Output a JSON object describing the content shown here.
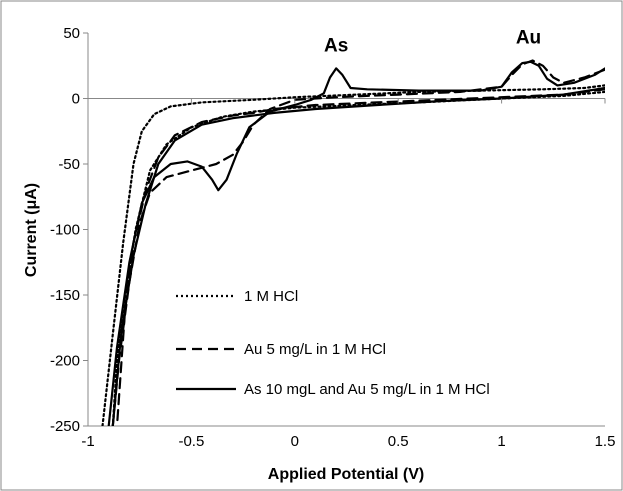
{
  "chart_data": {
    "type": "line",
    "title": "",
    "xlabel": "Applied Potential (V)",
    "ylabel": "Current (μA)",
    "xlim": [
      -1,
      1.5
    ],
    "ylim": [
      -250,
      50
    ],
    "x_ticks": [
      "-1",
      "-0.5",
      "0",
      "0.5",
      "1",
      "1.5"
    ],
    "y_ticks": [
      "50",
      "0",
      "-50",
      "-100",
      "-150",
      "-200",
      "-250"
    ],
    "grid": false,
    "legend_position": "bottom-center inside plot",
    "annotations": [
      {
        "text": "As",
        "x": 0.2,
        "y": 36
      },
      {
        "text": "Au",
        "x": 1.13,
        "y": 42
      }
    ],
    "series": [
      {
        "name": "1 M HCl",
        "style": "dotted",
        "color": "#000000",
        "segments": [
          [
            [
              -0.93,
              -250
            ],
            [
              -0.88,
              -180
            ],
            [
              -0.83,
              -110
            ],
            [
              -0.78,
              -50
            ],
            [
              -0.74,
              -25
            ],
            [
              -0.68,
              -12
            ],
            [
              -0.6,
              -6
            ],
            [
              -0.45,
              -3
            ],
            [
              -0.2,
              -1
            ],
            [
              0.0,
              1
            ],
            [
              0.3,
              3
            ],
            [
              0.6,
              5
            ],
            [
              0.9,
              6
            ],
            [
              1.2,
              7
            ],
            [
              1.4,
              8
            ],
            [
              1.5,
              10
            ]
          ],
          [
            [
              1.5,
              5
            ],
            [
              1.3,
              2
            ],
            [
              1.0,
              0
            ],
            [
              0.6,
              -3
            ],
            [
              0.3,
              -5
            ],
            [
              0.0,
              -7
            ],
            [
              -0.2,
              -10
            ],
            [
              -0.35,
              -14
            ],
            [
              -0.5,
              -22
            ],
            [
              -0.62,
              -35
            ],
            [
              -0.7,
              -55
            ],
            [
              -0.77,
              -100
            ],
            [
              -0.82,
              -150
            ],
            [
              -0.86,
              -200
            ],
            [
              -0.88,
              -250
            ]
          ]
        ]
      },
      {
        "name": "Au 5 mg/L in 1 M HCl",
        "style": "dashed",
        "color": "#000000",
        "segments": [
          [
            [
              -0.88,
              -250
            ],
            [
              -0.85,
              -200
            ],
            [
              -0.8,
              -140
            ],
            [
              -0.75,
              -95
            ],
            [
              -0.7,
              -72
            ],
            [
              -0.62,
              -60
            ],
            [
              -0.5,
              -55
            ],
            [
              -0.38,
              -50
            ],
            [
              -0.3,
              -43
            ],
            [
              -0.25,
              -33
            ],
            [
              -0.2,
              -20
            ],
            [
              -0.12,
              -8
            ],
            [
              0.0,
              -1
            ],
            [
              0.2,
              1
            ],
            [
              0.5,
              3
            ],
            [
              0.8,
              5
            ],
            [
              1.0,
              9
            ],
            [
              1.05,
              18
            ],
            [
              1.1,
              26
            ],
            [
              1.15,
              29
            ],
            [
              1.2,
              25
            ],
            [
              1.25,
              16
            ],
            [
              1.3,
              12
            ],
            [
              1.4,
              16
            ],
            [
              1.5,
              22
            ]
          ],
          [
            [
              1.5,
              7
            ],
            [
              1.3,
              3
            ],
            [
              1.0,
              1
            ],
            [
              0.7,
              -1
            ],
            [
              0.4,
              -3
            ],
            [
              0.1,
              -5
            ],
            [
              -0.1,
              -8
            ],
            [
              -0.2,
              -11
            ],
            [
              -0.3,
              -13
            ],
            [
              -0.45,
              -18
            ],
            [
              -0.58,
              -28
            ],
            [
              -0.66,
              -45
            ],
            [
              -0.72,
              -70
            ],
            [
              -0.78,
              -110
            ],
            [
              -0.82,
              -160
            ],
            [
              -0.86,
              -250
            ]
          ]
        ]
      },
      {
        "name": "As 10 mgL and Au 5 mg/L in 1 M HCl",
        "style": "solid",
        "color": "#000000",
        "segments": [
          [
            [
              -0.9,
              -250
            ],
            [
              -0.86,
              -190
            ],
            [
              -0.8,
              -125
            ],
            [
              -0.74,
              -80
            ],
            [
              -0.68,
              -60
            ],
            [
              -0.6,
              -50
            ],
            [
              -0.52,
              -48
            ],
            [
              -0.45,
              -52
            ],
            [
              -0.4,
              -62
            ],
            [
              -0.37,
              -70
            ],
            [
              -0.33,
              -62
            ],
            [
              -0.28,
              -42
            ],
            [
              -0.22,
              -22
            ],
            [
              -0.12,
              -10
            ],
            [
              0.0,
              -5
            ],
            [
              0.08,
              -1
            ],
            [
              0.14,
              4
            ],
            [
              0.17,
              16
            ],
            [
              0.2,
              23
            ],
            [
              0.23,
              18
            ],
            [
              0.27,
              8
            ],
            [
              0.35,
              7
            ],
            [
              0.6,
              6
            ],
            [
              0.9,
              6
            ],
            [
              1.0,
              9
            ],
            [
              1.05,
              20
            ],
            [
              1.1,
              27
            ],
            [
              1.14,
              28
            ],
            [
              1.18,
              25
            ],
            [
              1.22,
              15
            ],
            [
              1.27,
              10
            ],
            [
              1.35,
              12
            ],
            [
              1.45,
              18
            ],
            [
              1.5,
              23
            ]
          ],
          [
            [
              1.5,
              8
            ],
            [
              1.3,
              3
            ],
            [
              1.0,
              0
            ],
            [
              0.7,
              -2
            ],
            [
              0.4,
              -5
            ],
            [
              0.1,
              -8
            ],
            [
              -0.1,
              -11
            ],
            [
              -0.2,
              -13
            ],
            [
              -0.3,
              -15
            ],
            [
              -0.45,
              -20
            ],
            [
              -0.58,
              -32
            ],
            [
              -0.66,
              -50
            ],
            [
              -0.72,
              -80
            ],
            [
              -0.78,
              -120
            ],
            [
              -0.84,
              -180
            ],
            [
              -0.88,
              -250
            ]
          ]
        ]
      }
    ]
  }
}
